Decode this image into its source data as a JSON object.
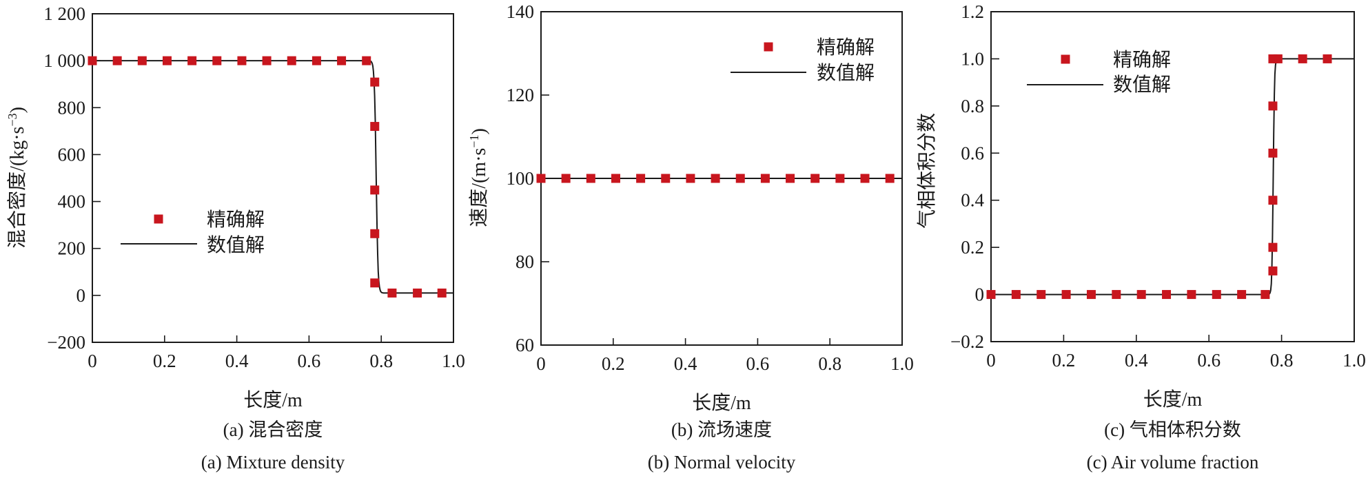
{
  "colors": {
    "exact": "#c8161e",
    "numerical": "#1a1a1a",
    "axis": "#1a1a1a"
  },
  "chart_data": [
    {
      "type": "line",
      "title_cn": "(a) 混合密度",
      "title_en": "(a) Mixture density",
      "xlabel": "长度/m",
      "ylabel": {
        "main": "混合密度/(kg·s",
        "sup": "−3",
        "end": ")"
      },
      "xlim": [
        0,
        1.0
      ],
      "ylim": [
        -200,
        1200
      ],
      "xticks": [
        0,
        0.2,
        0.4,
        0.6,
        0.8,
        1.0
      ],
      "xtick_labels": [
        "0",
        "0.2",
        "0.4",
        "0.6",
        "0.8",
        "1.0"
      ],
      "yticks": [
        1200,
        1000,
        800,
        600,
        400,
        200,
        0,
        -200
      ],
      "ytick_labels": [
        "1 200",
        "1 000",
        "800",
        "600",
        "400",
        "200",
        "0",
        "−200"
      ],
      "legend": {
        "exact": "精确解",
        "numerical": "数值解",
        "placement": "center-left"
      },
      "series": [
        {
          "name": "精确解",
          "kind": "markers",
          "x": [
            0,
            0.069,
            0.138,
            0.207,
            0.276,
            0.345,
            0.414,
            0.483,
            0.552,
            0.621,
            0.69,
            0.759,
            0.782,
            0.782,
            0.782,
            0.782,
            0.782,
            0.83,
            0.9,
            0.968
          ],
          "y": [
            1000,
            1000,
            1000,
            1000,
            1000,
            1000,
            1000,
            1000,
            1000,
            1000,
            1000,
            1000,
            909,
            720,
            449,
            263,
            53,
            10,
            10,
            10
          ]
        },
        {
          "name": "数值解",
          "kind": "line",
          "profile": "step-down",
          "left_value": 1000,
          "right_value": 10,
          "step_x": 0.786,
          "step_width": 0.005
        }
      ]
    },
    {
      "type": "line",
      "title_cn": "(b) 流场速度",
      "title_en": "(b) Normal velocity",
      "xlabel": "长度/m",
      "ylabel": {
        "main": "速度/(m·s",
        "sup": "−1",
        "end": ")"
      },
      "xlim": [
        0,
        1.0
      ],
      "ylim": [
        60,
        140
      ],
      "xticks": [
        0,
        0.2,
        0.4,
        0.6,
        0.8,
        1.0
      ],
      "xtick_labels": [
        "0",
        "0.2",
        "0.4",
        "0.6",
        "0.8",
        "1.0"
      ],
      "yticks": [
        140,
        120,
        100,
        80,
        60
      ],
      "ytick_labels": [
        "140",
        "120",
        "100",
        "80",
        "60"
      ],
      "legend": {
        "exact": "精确解",
        "numerical": "数值解",
        "placement": "top-right"
      },
      "series": [
        {
          "name": "精确解",
          "kind": "markers",
          "x": [
            0,
            0.069,
            0.138,
            0.207,
            0.276,
            0.345,
            0.414,
            0.483,
            0.552,
            0.621,
            0.69,
            0.759,
            0.828,
            0.897,
            0.966
          ],
          "y": [
            100,
            100,
            100,
            100,
            100,
            100,
            100,
            100,
            100,
            100,
            100,
            100,
            100,
            100,
            100
          ]
        },
        {
          "name": "数值解",
          "kind": "line",
          "profile": "constant",
          "left_value": 100,
          "right_value": 100,
          "step_x": 0.5,
          "step_width": 0.01
        }
      ]
    },
    {
      "type": "line",
      "title_cn": "(c) 气相体积分数",
      "title_en": "(c) Air volume fraction",
      "xlabel": "长度/m",
      "ylabel": {
        "main": "气相体积分数",
        "sup": "",
        "end": ""
      },
      "xlim": [
        0,
        1.0
      ],
      "ylim": [
        -0.2,
        1.2
      ],
      "xticks": [
        0,
        0.2,
        0.4,
        0.6,
        0.8,
        1.0
      ],
      "xtick_labels": [
        "0",
        "0.2",
        "0.4",
        "0.6",
        "0.8",
        "1.0"
      ],
      "yticks": [
        1.2,
        1.0,
        0.8,
        0.6,
        0.4,
        0.2,
        0,
        -0.2
      ],
      "ytick_labels": [
        "1.2",
        "1.0",
        "0.8",
        "0.6",
        "0.4",
        "0.2",
        "0",
        "−0.2"
      ],
      "legend": {
        "exact": "精确解",
        "numerical": "数值解",
        "placement": "top-left"
      },
      "series": [
        {
          "name": "精确解",
          "kind": "markers",
          "x": [
            0,
            0.069,
            0.138,
            0.207,
            0.276,
            0.345,
            0.414,
            0.483,
            0.552,
            0.621,
            0.69,
            0.755,
            0.776,
            0.776,
            0.776,
            0.776,
            0.776,
            0.776,
            0.79,
            0.858,
            0.926
          ],
          "y": [
            0,
            0,
            0,
            0,
            0,
            0,
            0,
            0,
            0,
            0,
            0,
            0,
            0.1,
            0.2,
            0.4,
            0.6,
            0.8,
            1.0,
            1.0,
            1.0,
            1.0
          ]
        },
        {
          "name": "数值解",
          "kind": "line",
          "profile": "step-up",
          "left_value": 0,
          "right_value": 1,
          "step_x": 0.777,
          "step_width": 0.0035
        }
      ]
    }
  ]
}
